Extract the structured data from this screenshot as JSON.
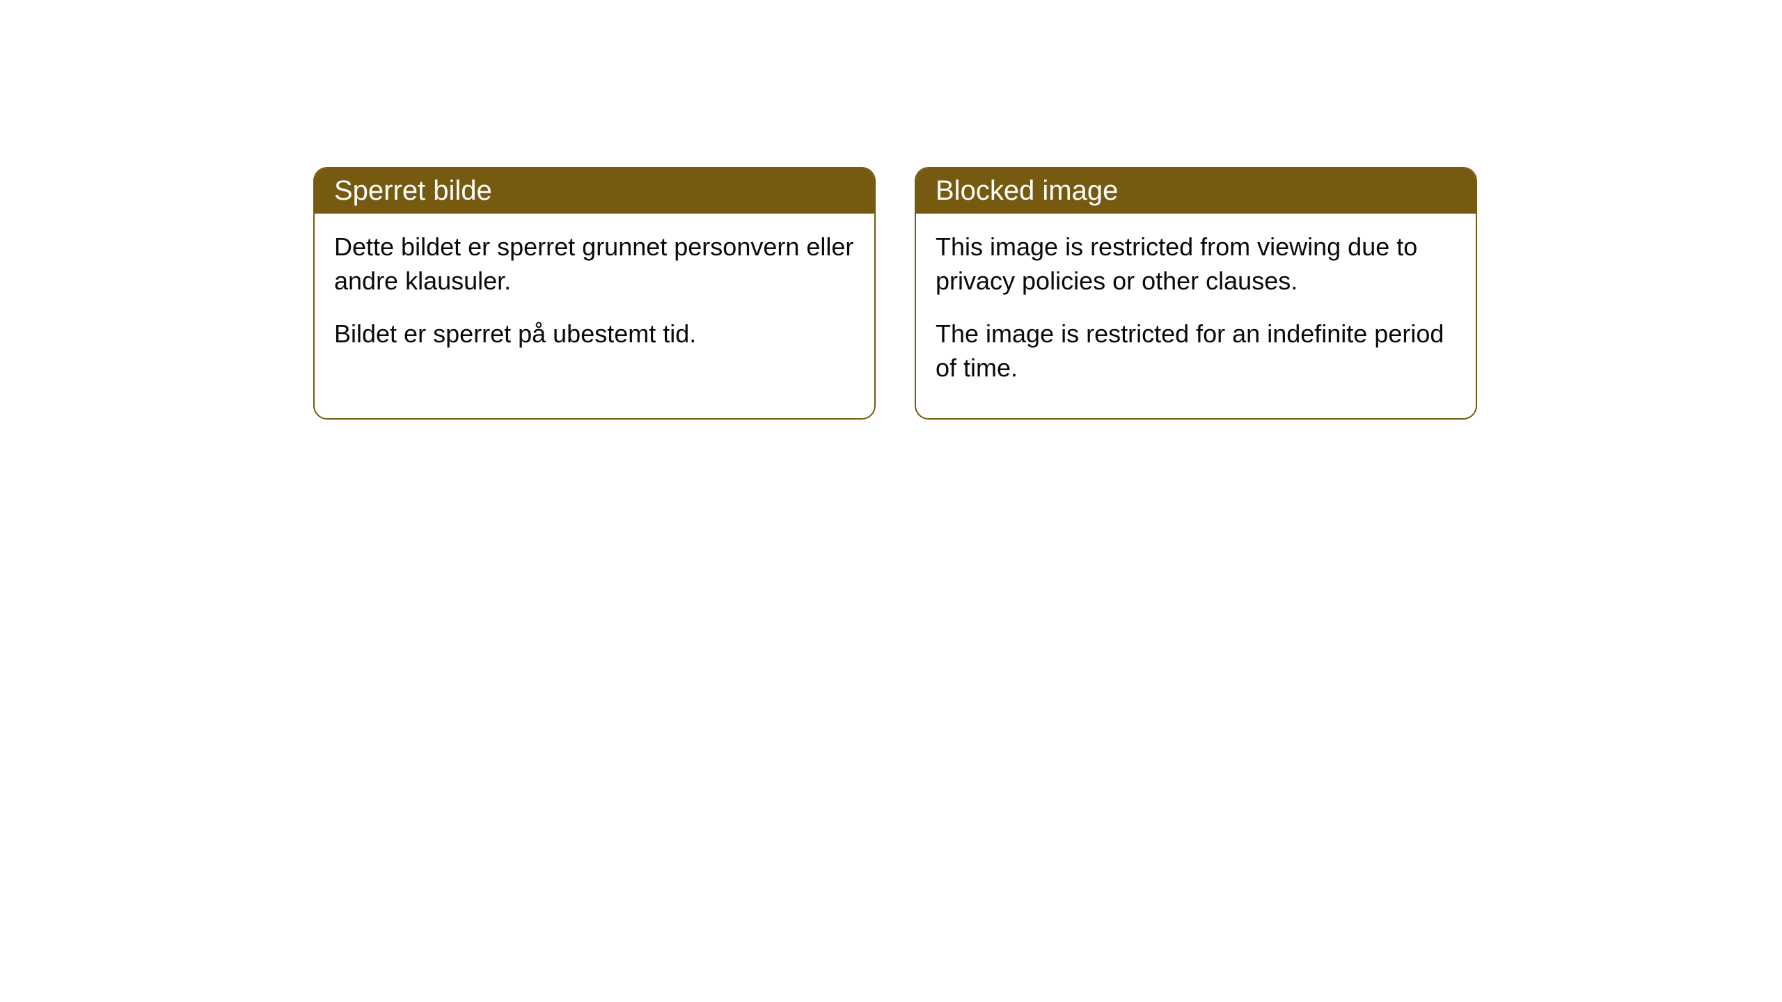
{
  "cards": [
    {
      "title": "Sperret bilde",
      "paragraph1": "Dette bildet er sperret grunnet personvern eller andre klausuler.",
      "paragraph2": "Bildet er sperret på ubestemt tid."
    },
    {
      "title": "Blocked image",
      "paragraph1": "This image is restricted from viewing due to privacy policies or other clauses.",
      "paragraph2": "The image is restricted for an indefinite period of time."
    }
  ],
  "styling": {
    "header_bg_color": "#755a10",
    "header_text_color": "#ffffff",
    "border_color": "#755a10",
    "body_text_color": "#0a0a0a",
    "card_bg_color": "#ffffff",
    "page_bg_color": "#ffffff",
    "border_radius": 20,
    "header_fontsize": 40,
    "body_fontsize": 36
  }
}
